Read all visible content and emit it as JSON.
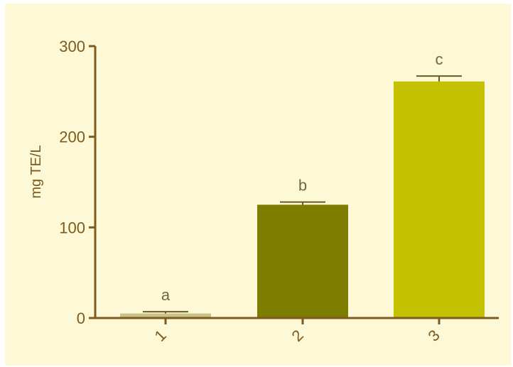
{
  "chart_data": {
    "type": "bar",
    "title": "",
    "xlabel": "",
    "ylabel": "mg TE/L",
    "categories": [
      "1",
      "2",
      "3"
    ],
    "values": [
      5,
      125,
      261
    ],
    "errors": [
      2,
      3,
      6
    ],
    "annotations": [
      "a",
      "b",
      "c"
    ],
    "bar_colors": [
      "#c8c28a",
      "#7e7d00",
      "#c4c100"
    ],
    "ylim": [
      0,
      300
    ],
    "yticks": [
      "0",
      "100",
      "200",
      "300"
    ],
    "grid": false,
    "legend": "none"
  },
  "colors": {
    "background": "#fdf8d6",
    "axis": "#7d5a1e",
    "error_bar": "#6b5a1e",
    "annotation_text": "#6f6a3c"
  }
}
